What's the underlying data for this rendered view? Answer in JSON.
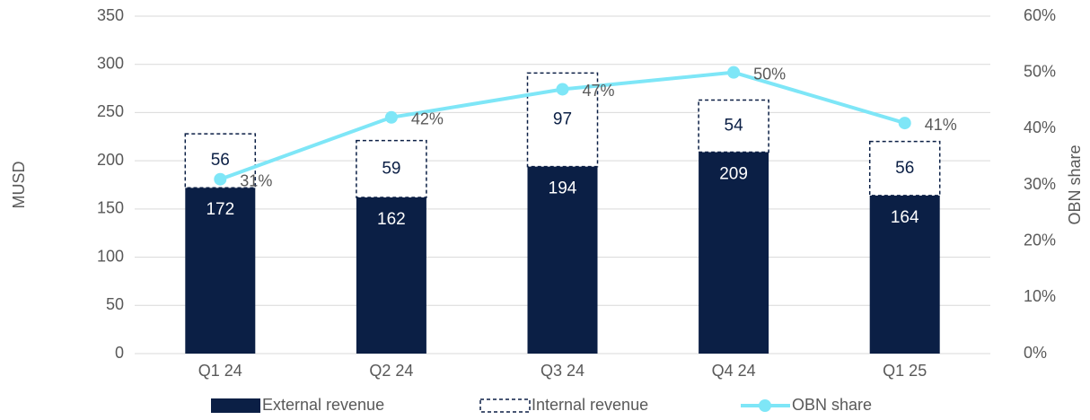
{
  "chart_data": {
    "type": "bar",
    "categories": [
      "Q1 24",
      "Q2 24",
      "Q3 24",
      "Q4 24",
      "Q1 25"
    ],
    "series": [
      {
        "name": "External revenue",
        "color": "#0b1f45",
        "values": [
          172,
          162,
          194,
          209,
          164
        ]
      },
      {
        "name": "Internal revenue",
        "color": "#0b1f45",
        "values": [
          56,
          59,
          97,
          54,
          56
        ]
      },
      {
        "name": "OBN share",
        "color": "#7ee6f7",
        "axis": "y2",
        "type": "line",
        "values": [
          31,
          42,
          47,
          50,
          41
        ],
        "value_labels": [
          "31%",
          "42%",
          "47%",
          "50%",
          "41%"
        ]
      }
    ],
    "stacked": true,
    "ylabel": "MUSD",
    "y2label": "OBN share",
    "ylim": [
      0,
      350
    ],
    "yticks": [
      0,
      50,
      100,
      150,
      200,
      250,
      300,
      350
    ],
    "y2lim": [
      0,
      60
    ],
    "y2ticks": [
      {
        "value": 0,
        "label": "0%"
      },
      {
        "value": 10,
        "label": "10%"
      },
      {
        "value": 20,
        "label": "20%"
      },
      {
        "value": 30,
        "label": "30%"
      },
      {
        "value": 40,
        "label": "40%"
      },
      {
        "value": 50,
        "label": "50%"
      },
      {
        "value": 60,
        "label": "60%"
      }
    ],
    "grid": true,
    "legend": "bottom"
  }
}
